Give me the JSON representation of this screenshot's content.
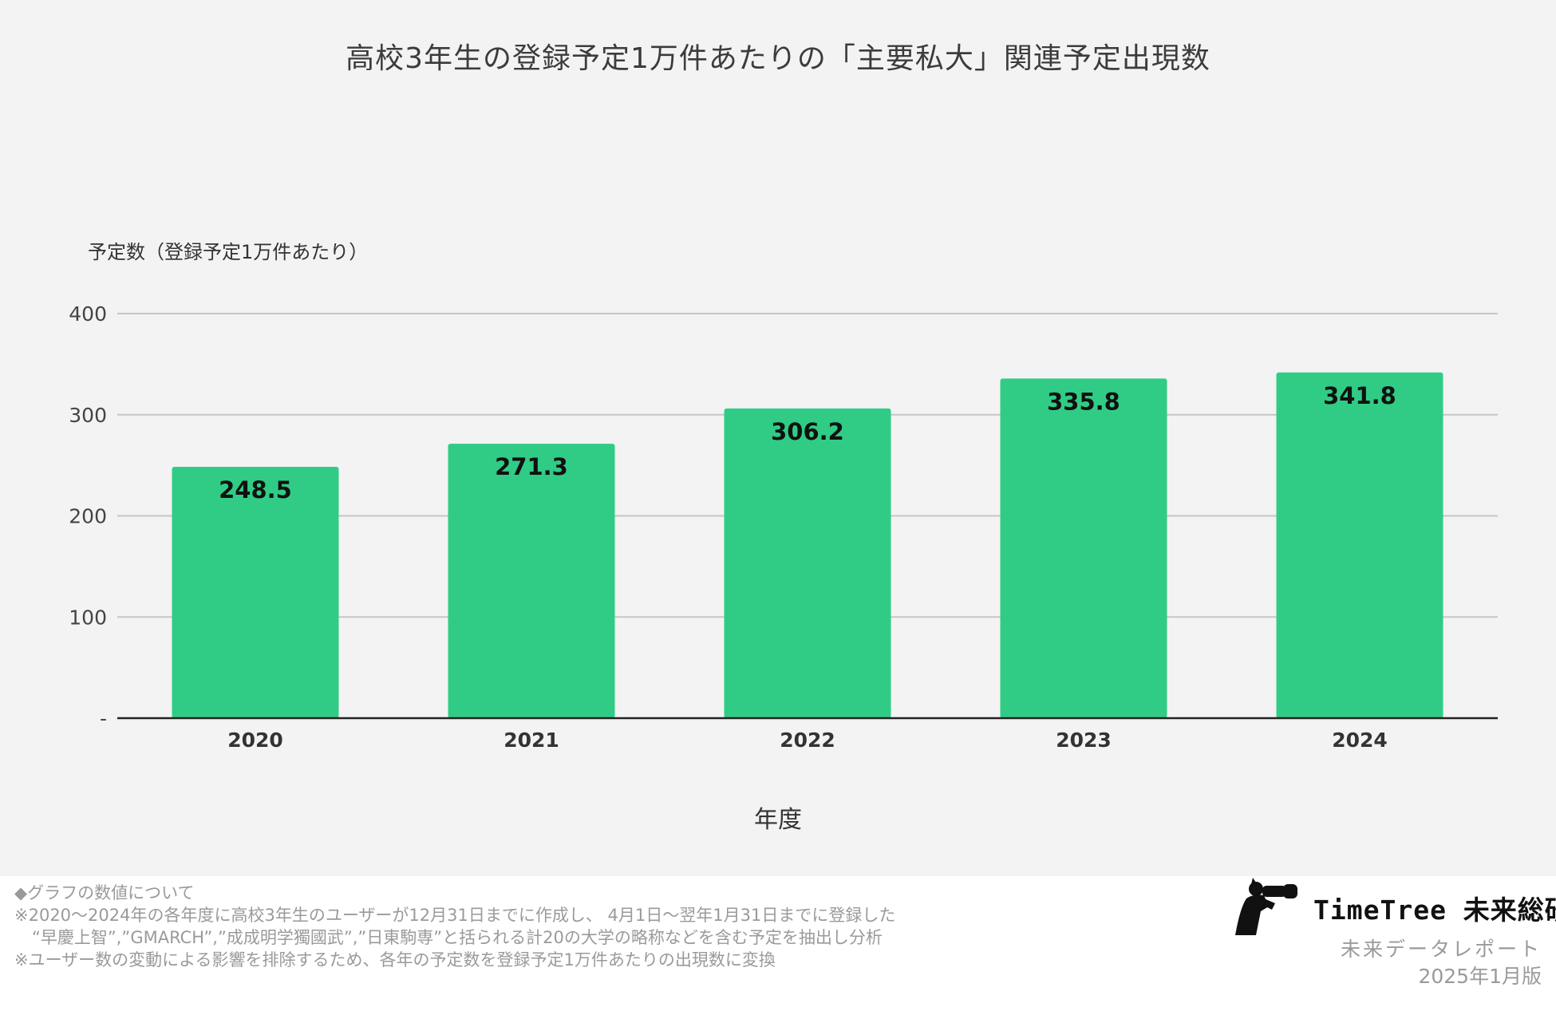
{
  "chart_data": {
    "type": "bar",
    "title": "高校3年生の登録予定1万件あたりの「主要私大」関連予定出現数",
    "ylabel": "予定数（登録予定1万件あたり）",
    "xlabel": "年度",
    "categories": [
      "2020",
      "2021",
      "2022",
      "2023",
      "2024"
    ],
    "values": [
      248.5,
      271.3,
      306.2,
      335.8,
      341.8
    ],
    "data_labels": [
      "248.5",
      "271.3",
      "306.2",
      "335.8",
      "341.8"
    ],
    "ylim": [
      0,
      400
    ],
    "yticks": [
      0,
      100,
      200,
      300,
      400
    ],
    "ytick_labels": [
      "-",
      "100",
      "200",
      "300",
      "400"
    ],
    "grid": true,
    "legend": "none",
    "bar_color": "#30cc86"
  },
  "footnotes": {
    "heading": "◆グラフの数値について",
    "line1": "※2020～2024年の各年度に高校3年生のユーザーが12月31日までに作成し、 4月1日～翌年1月31日までに登録した",
    "line2": "“早慶上智”,”GMARCH”,”成成明学獨國武”,”日東駒専”と括られる計20の大学の略称などを含む予定を抽出し分析",
    "line3": "※ユーザー数の変動による影響を排除するため、各年の予定数を登録予定1万件あたりの出現数に変換"
  },
  "brand": {
    "name": "TimeTree 未来総研",
    "report": "未来データレポート",
    "date": "2025年1月版",
    "logo_icon": "person-with-binoculars-icon"
  }
}
